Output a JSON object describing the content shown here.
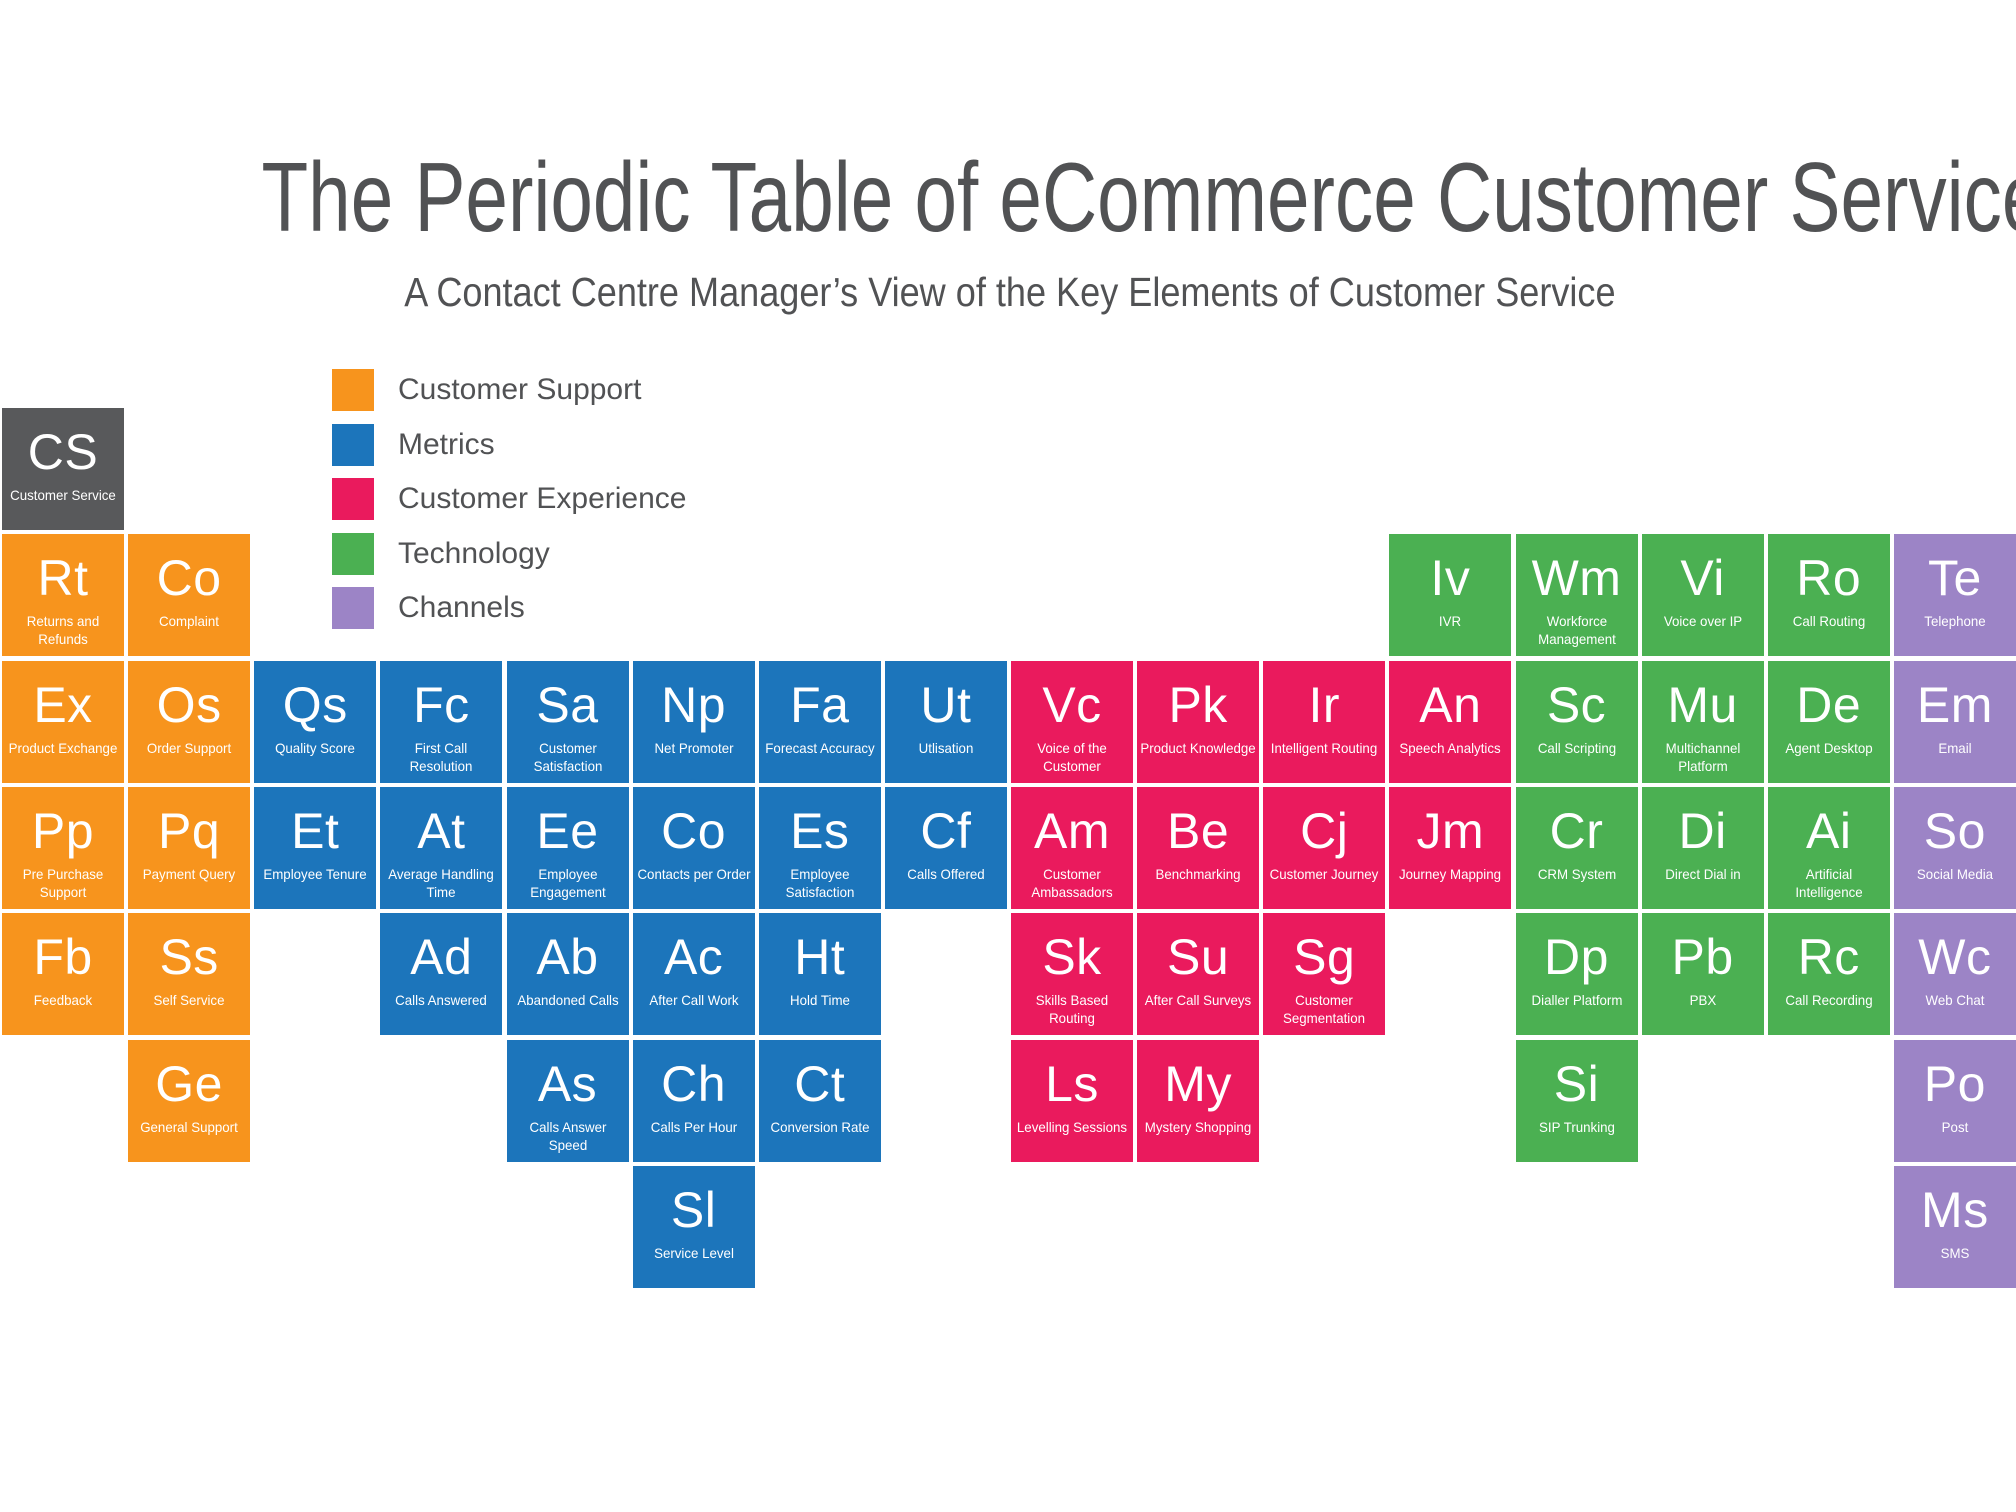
{
  "title": "The Periodic Table of eCommerce Customer Service",
  "subtitle": "A Contact Centre Manager’s View of the Key Elements of Customer Service",
  "colors": {
    "customer_service": "#58595B",
    "customer_support": "#F7941D",
    "metrics": "#1C75BB",
    "customer_experience": "#EA1A5D",
    "technology": "#4BB052",
    "channels": "#9C84C6",
    "heading_text": "#515254",
    "background": "#FFFFFF"
  },
  "legend": {
    "items": [
      {
        "label": "Customer Support",
        "category": "customer_support"
      },
      {
        "label": "Metrics",
        "category": "metrics"
      },
      {
        "label": "Customer Experience",
        "category": "customer_experience"
      },
      {
        "label": "Technology",
        "category": "technology"
      },
      {
        "label": "Channels",
        "category": "channels"
      }
    ]
  },
  "elements": [
    {
      "symbol": "CS",
      "name": "Customer Service",
      "category": "customer_service",
      "row": 0,
      "col": 1
    },
    {
      "symbol": "Rt",
      "name": "Returns and\nRefunds",
      "category": "customer_support",
      "row": 1,
      "col": 1
    },
    {
      "symbol": "Co",
      "name": "Complaint",
      "category": "customer_support",
      "row": 1,
      "col": 2
    },
    {
      "symbol": "Iv",
      "name": "IVR",
      "category": "technology",
      "row": 1,
      "col": 12
    },
    {
      "symbol": "Wm",
      "name": "Workforce\nManagement",
      "category": "technology",
      "row": 1,
      "col": 13
    },
    {
      "symbol": "Vi",
      "name": "Voice over IP",
      "category": "technology",
      "row": 1,
      "col": 14
    },
    {
      "symbol": "Ro",
      "name": "Call Routing",
      "category": "technology",
      "row": 1,
      "col": 15
    },
    {
      "symbol": "Te",
      "name": "Telephone",
      "category": "channels",
      "row": 1,
      "col": 16
    },
    {
      "symbol": "Ex",
      "name": "Product Exchange",
      "category": "customer_support",
      "row": 2,
      "col": 1
    },
    {
      "symbol": "Os",
      "name": "Order Support",
      "category": "customer_support",
      "row": 2,
      "col": 2
    },
    {
      "symbol": "Qs",
      "name": "Quality Score",
      "category": "metrics",
      "row": 2,
      "col": 3
    },
    {
      "symbol": "Fc",
      "name": "First Call\nResolution",
      "category": "metrics",
      "row": 2,
      "col": 4
    },
    {
      "symbol": "Sa",
      "name": "Customer\nSatisfaction",
      "category": "metrics",
      "row": 2,
      "col": 5
    },
    {
      "symbol": "Np",
      "name": "Net Promoter",
      "category": "metrics",
      "row": 2,
      "col": 6
    },
    {
      "symbol": "Fa",
      "name": "Forecast Accuracy",
      "category": "metrics",
      "row": 2,
      "col": 7
    },
    {
      "symbol": "Ut",
      "name": "Utlisation",
      "category": "metrics",
      "row": 2,
      "col": 8
    },
    {
      "symbol": "Vc",
      "name": "Voice of the\nCustomer",
      "category": "customer_experience",
      "row": 2,
      "col": 9
    },
    {
      "symbol": "Pk",
      "name": "Product Knowledge",
      "category": "customer_experience",
      "row": 2,
      "col": 10
    },
    {
      "symbol": "Ir",
      "name": "Intelligent Routing",
      "category": "customer_experience",
      "row": 2,
      "col": 11
    },
    {
      "symbol": "An",
      "name": "Speech Analytics",
      "category": "customer_experience",
      "row": 2,
      "col": 12
    },
    {
      "symbol": "Sc",
      "name": "Call Scripting",
      "category": "technology",
      "row": 2,
      "col": 13
    },
    {
      "symbol": "Mu",
      "name": "Multichannel\nPlatform",
      "category": "technology",
      "row": 2,
      "col": 14
    },
    {
      "symbol": "De",
      "name": "Agent Desktop",
      "category": "technology",
      "row": 2,
      "col": 15
    },
    {
      "symbol": "Em",
      "name": "Email",
      "category": "channels",
      "row": 2,
      "col": 16
    },
    {
      "symbol": "Pp",
      "name": "Pre Purchase\nSupport",
      "category": "customer_support",
      "row": 3,
      "col": 1
    },
    {
      "symbol": "Pq",
      "name": "Payment Query",
      "category": "customer_support",
      "row": 3,
      "col": 2
    },
    {
      "symbol": "Et",
      "name": "Employee Tenure",
      "category": "metrics",
      "row": 3,
      "col": 3
    },
    {
      "symbol": "At",
      "name": "Average Handling\nTime",
      "category": "metrics",
      "row": 3,
      "col": 4
    },
    {
      "symbol": "Ee",
      "name": "Employee\nEngagement",
      "category": "metrics",
      "row": 3,
      "col": 5
    },
    {
      "symbol": "Co",
      "name": "Contacts per Order",
      "category": "metrics",
      "row": 3,
      "col": 6
    },
    {
      "symbol": "Es",
      "name": "Employee\nSatisfaction",
      "category": "metrics",
      "row": 3,
      "col": 7
    },
    {
      "symbol": "Cf",
      "name": "Calls Offered",
      "category": "metrics",
      "row": 3,
      "col": 8
    },
    {
      "symbol": "Am",
      "name": "Customer\nAmbassadors",
      "category": "customer_experience",
      "row": 3,
      "col": 9
    },
    {
      "symbol": "Be",
      "name": "Benchmarking",
      "category": "customer_experience",
      "row": 3,
      "col": 10
    },
    {
      "symbol": "Cj",
      "name": "Customer Journey",
      "category": "customer_experience",
      "row": 3,
      "col": 11
    },
    {
      "symbol": "Jm",
      "name": "Journey Mapping",
      "category": "customer_experience",
      "row": 3,
      "col": 12
    },
    {
      "symbol": "Cr",
      "name": "CRM System",
      "category": "technology",
      "row": 3,
      "col": 13
    },
    {
      "symbol": "Di",
      "name": "Direct Dial in",
      "category": "technology",
      "row": 3,
      "col": 14
    },
    {
      "symbol": "Ai",
      "name": "Artificial\nIntelligence",
      "category": "technology",
      "row": 3,
      "col": 15
    },
    {
      "symbol": "So",
      "name": "Social Media",
      "category": "channels",
      "row": 3,
      "col": 16
    },
    {
      "symbol": "Fb",
      "name": "Feedback",
      "category": "customer_support",
      "row": 4,
      "col": 1
    },
    {
      "symbol": "Ss",
      "name": "Self Service",
      "category": "customer_support",
      "row": 4,
      "col": 2
    },
    {
      "symbol": "Ad",
      "name": "Calls Answered",
      "category": "metrics",
      "row": 4,
      "col": 4
    },
    {
      "symbol": "Ab",
      "name": "Abandoned Calls",
      "category": "metrics",
      "row": 4,
      "col": 5
    },
    {
      "symbol": "Ac",
      "name": "After Call Work",
      "category": "metrics",
      "row": 4,
      "col": 6
    },
    {
      "symbol": "Ht",
      "name": "Hold Time",
      "category": "metrics",
      "row": 4,
      "col": 7
    },
    {
      "symbol": "Sk",
      "name": "Skills Based\nRouting",
      "category": "customer_experience",
      "row": 4,
      "col": 9
    },
    {
      "symbol": "Su",
      "name": "After Call Surveys",
      "category": "customer_experience",
      "row": 4,
      "col": 10
    },
    {
      "symbol": "Sg",
      "name": "Customer\nSegmentation",
      "category": "customer_experience",
      "row": 4,
      "col": 11
    },
    {
      "symbol": "Dp",
      "name": "Dialler Platform",
      "category": "technology",
      "row": 4,
      "col": 13
    },
    {
      "symbol": "Pb",
      "name": "PBX",
      "category": "technology",
      "row": 4,
      "col": 14
    },
    {
      "symbol": "Rc",
      "name": "Call Recording",
      "category": "technology",
      "row": 4,
      "col": 15
    },
    {
      "symbol": "Wc",
      "name": "Web Chat",
      "category": "channels",
      "row": 4,
      "col": 16
    },
    {
      "symbol": "Ge",
      "name": "General Support",
      "category": "customer_support",
      "row": 5,
      "col": 2
    },
    {
      "symbol": "As",
      "name": "Calls Answer\nSpeed",
      "category": "metrics",
      "row": 5,
      "col": 5
    },
    {
      "symbol": "Ch",
      "name": "Calls Per Hour",
      "category": "metrics",
      "row": 5,
      "col": 6
    },
    {
      "symbol": "Ct",
      "name": "Conversion Rate",
      "category": "metrics",
      "row": 5,
      "col": 7
    },
    {
      "symbol": "Ls",
      "name": "Levelling Sessions",
      "category": "customer_experience",
      "row": 5,
      "col": 9
    },
    {
      "symbol": "My",
      "name": "Mystery Shopping",
      "category": "customer_experience",
      "row": 5,
      "col": 10
    },
    {
      "symbol": "Si",
      "name": "SIP Trunking",
      "category": "technology",
      "row": 5,
      "col": 13
    },
    {
      "symbol": "Po",
      "name": "Post",
      "category": "channels",
      "row": 5,
      "col": 16
    },
    {
      "symbol": "Sl",
      "name": "Service Level",
      "category": "metrics",
      "row": 6,
      "col": 6
    },
    {
      "symbol": "Ms",
      "name": "SMS",
      "category": "channels",
      "row": 6,
      "col": 16
    }
  ]
}
